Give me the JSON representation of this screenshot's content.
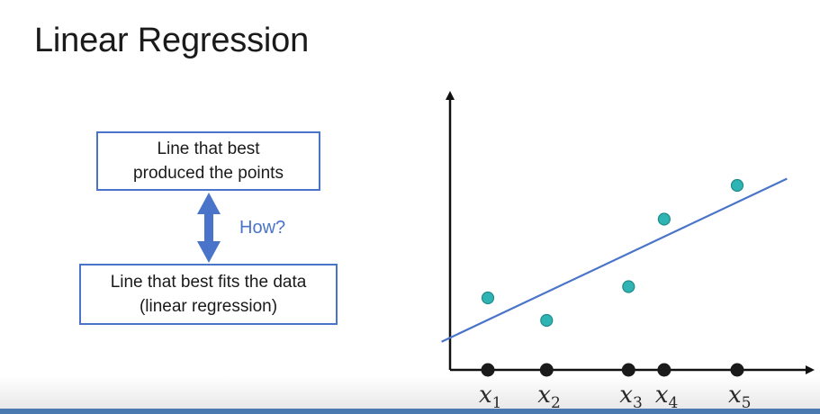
{
  "slide": {
    "title": "Linear Regression"
  },
  "diagram": {
    "top_box_line1": "Line that best",
    "top_box_line2": "produced the points",
    "bottom_box_line1": "Line that best fits the data",
    "bottom_box_line2": "(linear regression)",
    "how_label": "How?"
  },
  "colors": {
    "accent": "#4a74c9",
    "points": "#2fb3b3",
    "axis": "#111111"
  },
  "chart_data": {
    "type": "scatter",
    "x_ticks": [
      {
        "name": "x",
        "sub": "1",
        "value": 1.0
      },
      {
        "name": "x",
        "sub": "2",
        "value": 2.65
      },
      {
        "name": "x",
        "sub": "3",
        "value": 4.95
      },
      {
        "name": "x",
        "sub": "4",
        "value": 5.95
      },
      {
        "name": "x",
        "sub": "5",
        "value": 8.0
      }
    ],
    "points": [
      {
        "x": 1.0,
        "y": 3.2
      },
      {
        "x": 2.65,
        "y": 2.2
      },
      {
        "x": 4.95,
        "y": 3.7
      },
      {
        "x": 5.95,
        "y": 6.7
      },
      {
        "x": 8.0,
        "y": 8.2
      }
    ],
    "fit_line": {
      "x1": -0.3,
      "y1": 1.25,
      "x2": 9.4,
      "y2": 8.5
    },
    "xlim": [
      -0.3,
      10.6
    ],
    "ylim": [
      0,
      11.5
    ],
    "grid": false
  }
}
